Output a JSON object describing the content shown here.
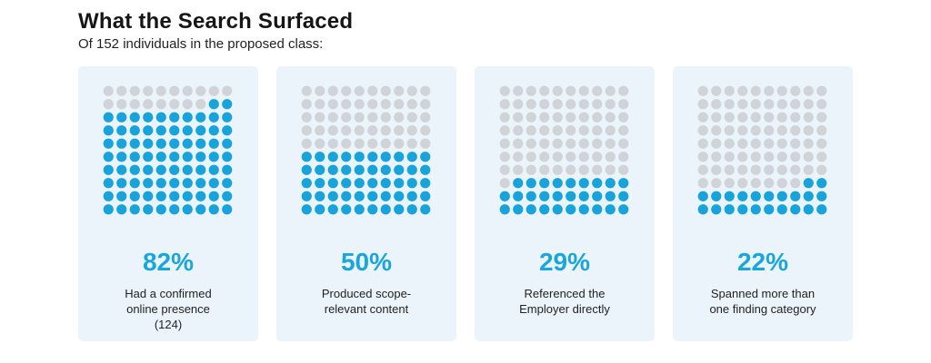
{
  "header": {
    "title": "What the Search Surfaced",
    "subtitle": "Of 152 individuals in the proposed class:"
  },
  "colors": {
    "filled": "#18a4da",
    "empty": "#d0d4d8",
    "card_bg": "#ebf4fb",
    "accent_text": "#1aa6dc"
  },
  "chart_data": [
    {
      "type": "waffle",
      "grid": [
        10,
        10
      ],
      "value_percent": 82,
      "label": "82%",
      "caption_lines": [
        "Had a confirmed",
        "online presence"
      ],
      "count": "(124)"
    },
    {
      "type": "waffle",
      "grid": [
        10,
        10
      ],
      "value_percent": 50,
      "label": "50%",
      "caption_lines": [
        "Produced scope-",
        "relevant content"
      ],
      "count": ""
    },
    {
      "type": "waffle",
      "grid": [
        10,
        10
      ],
      "value_percent": 29,
      "label": "29%",
      "caption_lines": [
        "Referenced the",
        "Employer directly"
      ],
      "count": ""
    },
    {
      "type": "waffle",
      "grid": [
        10,
        10
      ],
      "value_percent": 22,
      "label": "22%",
      "caption_lines": [
        "Spanned more than",
        "one finding category"
      ],
      "count": ""
    }
  ]
}
